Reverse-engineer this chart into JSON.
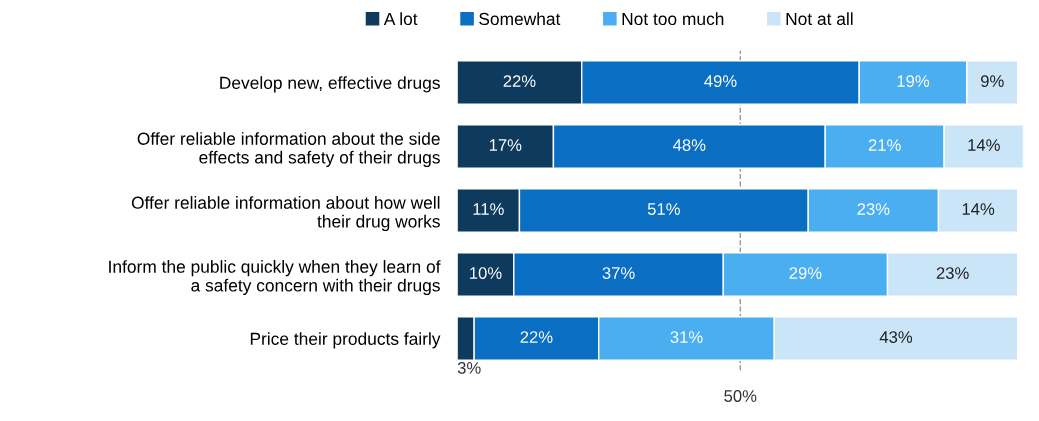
{
  "chart_data": {
    "type": "bar",
    "orientation": "horizontal",
    "stacked": true,
    "categories": [
      "Develop new, effective drugs",
      "Offer reliable information about the side\neffects and safety of their drugs",
      "Offer reliable information about how well\ntheir drug works",
      "Inform the public quickly when they learn of\na safety concern with their drugs",
      "Price their products fairly"
    ],
    "series": [
      {
        "name": "A lot",
        "color": "#0e3a5e",
        "values": [
          22,
          17,
          11,
          10,
          3
        ],
        "value_labels": [
          "22%",
          "17%",
          "11%",
          "10%",
          "3%"
        ]
      },
      {
        "name": "Somewhat",
        "color": "#0a6fc2",
        "values": [
          49,
          48,
          51,
          37,
          22
        ],
        "value_labels": [
          "49%",
          "48%",
          "51%",
          "37%",
          "22%"
        ]
      },
      {
        "name": "Not too much",
        "color": "#4aaef0",
        "values": [
          19,
          21,
          23,
          29,
          31
        ],
        "value_labels": [
          "19%",
          "21%",
          "23%",
          "29%",
          "31%"
        ]
      },
      {
        "name": "Not at all",
        "color": "#cbe5f8",
        "values": [
          9,
          14,
          14,
          23,
          43
        ],
        "value_labels": [
          "9%",
          "14%",
          "14%",
          "23%",
          "43%"
        ]
      }
    ],
    "grid": false,
    "legend": "top",
    "ref_lines": [
      {
        "axis": "x",
        "value": 50,
        "label": "50%",
        "line_style": "dashed",
        "color": "#999999"
      }
    ]
  }
}
